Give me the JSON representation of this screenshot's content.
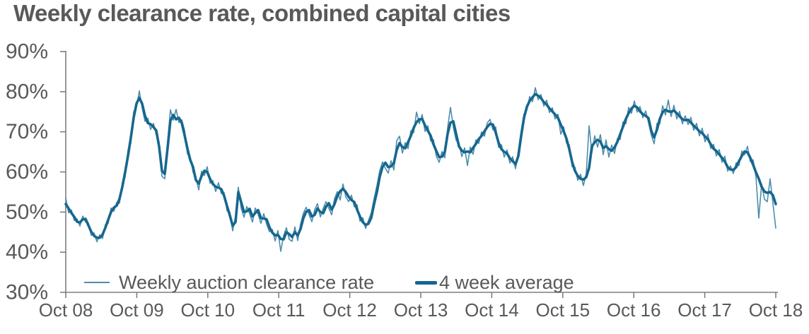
{
  "chart_data": {
    "type": "line",
    "title": "Weekly clearance rate, combined capital cities",
    "xlabel": "",
    "ylabel": "",
    "ylim": [
      30,
      90
    ],
    "y_tick_step": 10,
    "grid": "off",
    "legend_position": "inside-bottom-left",
    "y_tick_labels": [
      "90%",
      "80%",
      "70%",
      "60%",
      "50%",
      "40%",
      "30%"
    ],
    "x_tick_labels": [
      "Oct 08",
      "Oct 09",
      "Oct 10",
      "Oct 11",
      "Oct 12",
      "Oct 13",
      "Oct 14",
      "Oct 15",
      "Oct 16",
      "Oct 17",
      "Oct 18"
    ],
    "colors": {
      "weekly_line": "#4e8dab",
      "average_line": "#16678e",
      "text": "#595959",
      "axis": "#7f7f7f"
    },
    "series": [
      {
        "name": "Weekly auction clearance rate",
        "style": "thin",
        "values": [
          53.5,
          49.8,
          50.5,
          47.9,
          48.3,
          46.5,
          49.0,
          47.5,
          47.3,
          44.2,
          44.8,
          42.6,
          44.3,
          43.4,
          46.9,
          47.2,
          51.0,
          50.2,
          52.4,
          52.2,
          57.4,
          58.7,
          65.5,
          67.2,
          75.0,
          76.1,
          80.2,
          76.0,
          72.6,
          73.4,
          70.6,
          72.1,
          69.2,
          67.5,
          58.9,
          58.3,
          67.5,
          75.5,
          72.9,
          75.6,
          72.3,
          73.0,
          70.4,
          64.5,
          63.8,
          59.9,
          58.6,
          55.5,
          60.2,
          59.1,
          61.3,
          57.2,
          57.8,
          55.1,
          57.3,
          54.6,
          54.8,
          50.3,
          50.0,
          45.3,
          48.9,
          56.2,
          51.0,
          48.7,
          51.4,
          49.6,
          47.5,
          51.0,
          49.4,
          47.2,
          49.6,
          47.0,
          45.1,
          45.7,
          42.8,
          45.4,
          40.2,
          44.1,
          46.1,
          43.2,
          42.7,
          46.3,
          42.9,
          47.0,
          49.7,
          51.2,
          49.4,
          47.6,
          50.6,
          52.1,
          48.8,
          50.9,
          52.6,
          50.9,
          49.3,
          53.3,
          55.1,
          53.0,
          57.0,
          53.8,
          52.6,
          54.2,
          51.3,
          51.8,
          47.7,
          48.6,
          45.9,
          47.9,
          49.8,
          53.4,
          56.6,
          60.3,
          62.5,
          60.9,
          59.7,
          62.8,
          60.5,
          67.8,
          68.9,
          64.7,
          67.3,
          65.8,
          70.3,
          69.8,
          74.9,
          72.0,
          74.3,
          70.1,
          71.5,
          67.7,
          68.0,
          63.9,
          62.4,
          65.1,
          63.5,
          71.0,
          76.1,
          71.2,
          67.9,
          67.3,
          63.8,
          66.0,
          61.6,
          66.2,
          64.4,
          68.0,
          67.1,
          70.0,
          68.9,
          72.2,
          73.1,
          70.5,
          71.2,
          66.1,
          66.8,
          63.7,
          65.5,
          62.2,
          63.8,
          60.8,
          65.3,
          70.2,
          74.5,
          75.4,
          78.8,
          77.5,
          81.0,
          78.0,
          79.3,
          76.4,
          77.9,
          74.8,
          76.0,
          73.2,
          74.4,
          69.4,
          71.3,
          67.2,
          66.8,
          61.3,
          61.2,
          57.9,
          59.4,
          56.6,
          59.6,
          71.5,
          64.8,
          69.0,
          66.2,
          69.3,
          64.3,
          68.0,
          63.7,
          66.7,
          64.6,
          68.3,
          68.1,
          72.5,
          72.0,
          76.1,
          74.6,
          77.7,
          74.9,
          76.3,
          73.5,
          75.2,
          72.3,
          69.2,
          67.0,
          72.1,
          72.0,
          76.5,
          74.2,
          77.9,
          73.8,
          76.6,
          73.2,
          75.1,
          72.0,
          74.0,
          71.8,
          73.6,
          70.4,
          72.1,
          69.0,
          70.9,
          67.5,
          69.4,
          65.8,
          66.9,
          64.0,
          65.6,
          62.4,
          63.9,
          60.2,
          61.5,
          59.6,
          62.3,
          61.6,
          65.2,
          64.3,
          66.4,
          62.6,
          63.0,
          58.8,
          48.5,
          57.0,
          53.2,
          52.6,
          58.3,
          52.2,
          46.0
        ]
      },
      {
        "name": "4 week average",
        "style": "thick",
        "values": [
          52.0,
          50.9,
          49.8,
          48.8,
          47.6,
          47.4,
          48.2,
          48.3,
          46.7,
          45.1,
          44.1,
          43.6,
          43.6,
          44.4,
          46.1,
          48.1,
          50.0,
          51.1,
          51.6,
          53.3,
          56.3,
          60.0,
          64.0,
          68.5,
          73.5,
          77.0,
          78.5,
          77.0,
          74.0,
          72.2,
          71.9,
          71.2,
          70.3,
          66.3,
          60.3,
          59.5,
          66.0,
          72.8,
          74.2,
          73.1,
          73.5,
          72.2,
          69.2,
          65.8,
          63.0,
          61.2,
          58.0,
          57.1,
          59.0,
          60.3,
          60.0,
          58.3,
          57.0,
          56.3,
          56.1,
          55.7,
          54.0,
          51.5,
          49.2,
          46.6,
          47.5,
          55.0,
          52.5,
          50.0,
          50.2,
          50.8,
          48.9,
          49.8,
          50.5,
          48.5,
          48.4,
          48.2,
          46.2,
          44.9,
          44.2,
          44.3,
          43.3,
          43.2,
          45.0,
          44.5,
          43.8,
          45.0,
          44.2,
          45.8,
          48.5,
          50.1,
          50.5,
          48.9,
          49.3,
          50.9,
          50.0,
          49.7,
          51.4,
          52.2,
          50.6,
          52.0,
          54.0,
          55.2,
          55.8,
          55.0,
          53.8,
          53.0,
          52.5,
          50.6,
          48.9,
          47.5,
          46.8,
          47.1,
          48.6,
          52.0,
          55.0,
          58.8,
          61.3,
          62.3,
          61.2,
          61.4,
          62.2,
          65.5,
          67.2,
          66.2,
          65.9,
          67.4,
          69.0,
          71.0,
          72.4,
          73.1,
          73.2,
          71.6,
          70.3,
          69.0,
          66.9,
          65.2,
          63.7,
          63.8,
          65.0,
          69.5,
          72.3,
          72.6,
          69.5,
          66.4,
          65.3,
          64.9,
          65.1,
          64.9,
          66.0,
          67.0,
          68.2,
          69.0,
          70.1,
          71.2,
          72.0,
          71.8,
          69.8,
          67.3,
          65.7,
          65.0,
          64.6,
          63.4,
          62.7,
          61.9,
          64.0,
          69.0,
          73.5,
          76.2,
          77.7,
          78.6,
          79.4,
          79.0,
          78.4,
          77.4,
          76.8,
          75.8,
          75.1,
          74.3,
          73.5,
          71.8,
          70.2,
          68.3,
          65.7,
          62.5,
          60.3,
          59.0,
          58.3,
          58.1,
          58.7,
          61.0,
          66.4,
          67.4,
          68.0,
          67.6,
          66.0,
          66.4,
          65.7,
          65.3,
          66.1,
          67.5,
          69.4,
          71.3,
          73.2,
          74.7,
          75.8,
          76.5,
          76.1,
          75.1,
          74.4,
          74.0,
          73.4,
          70.2,
          68.6,
          70.5,
          73.2,
          74.9,
          75.5,
          75.1,
          75.0,
          75.3,
          74.6,
          73.9,
          73.1,
          72.9,
          73.0,
          72.3,
          71.5,
          70.9,
          70.1,
          69.7,
          68.8,
          68.2,
          66.9,
          65.8,
          65.2,
          64.4,
          63.5,
          62.6,
          61.2,
          60.6,
          60.5,
          61.2,
          62.7,
          64.0,
          65.1,
          64.9,
          63.5,
          61.8,
          59.9,
          58.3,
          56.3,
          55.1,
          54.8,
          55.0,
          54.2,
          52.0
        ]
      }
    ],
    "legend": [
      {
        "label": "Weekly auction clearance rate"
      },
      {
        "label": "4 week average"
      }
    ]
  }
}
